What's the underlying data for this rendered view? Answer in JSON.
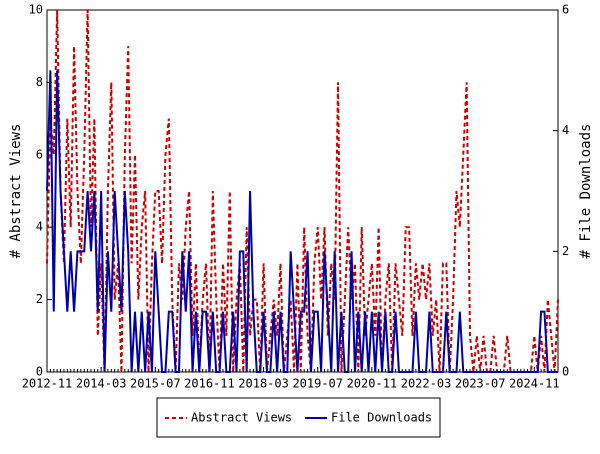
{
  "chart_data": {
    "type": "line",
    "y_label": "# Abstract Views",
    "y2_label": "# File Downloads",
    "categories": [
      "2012-11",
      null,
      null,
      null,
      null,
      null,
      null,
      null,
      null,
      null,
      null,
      null,
      null,
      null,
      null,
      null,
      "2014-03",
      null,
      null,
      null,
      null,
      null,
      null,
      null,
      null,
      null,
      null,
      null,
      null,
      null,
      null,
      null,
      "2015-07",
      null,
      null,
      null,
      null,
      null,
      null,
      null,
      null,
      null,
      null,
      null,
      null,
      null,
      null,
      null,
      "2016-11",
      null,
      null,
      null,
      null,
      null,
      null,
      null,
      null,
      null,
      null,
      null,
      null,
      null,
      null,
      null,
      "2018-03",
      null,
      null,
      null,
      null,
      null,
      null,
      null,
      null,
      null,
      null,
      null,
      null,
      null,
      null,
      null,
      "2019-07",
      null,
      null,
      null,
      null,
      null,
      null,
      null,
      null,
      null,
      null,
      null,
      null,
      null,
      null,
      null,
      "2020-11",
      null,
      null,
      null,
      null,
      null,
      null,
      null,
      null,
      null,
      null,
      null,
      null,
      null,
      null,
      null,
      "2022-03",
      null,
      null,
      null,
      null,
      null,
      null,
      null,
      null,
      null,
      null,
      null,
      null,
      null,
      null,
      null,
      "2023-07",
      null,
      null,
      null,
      null,
      null,
      null,
      null,
      null,
      null,
      null,
      null,
      null,
      null,
      null,
      null,
      "2024-11",
      null,
      null,
      null,
      null,
      null,
      null,
      null
    ],
    "series": [
      {
        "name": "Abstract Views",
        "color": "#cc0000",
        "dash": true,
        "axis": "y",
        "values": [
          3,
          7,
          6,
          10,
          5,
          3,
          7,
          4,
          9,
          5,
          3,
          6,
          10,
          4,
          7,
          1,
          3,
          0,
          5,
          8,
          2,
          3,
          0,
          6,
          9,
          3,
          6,
          2,
          4,
          5,
          0,
          3,
          5,
          5,
          3,
          6,
          7,
          2,
          0,
          3,
          2,
          4,
          5,
          1,
          3,
          0,
          2,
          3,
          0,
          5,
          2,
          0,
          3,
          1,
          5,
          0,
          2,
          3,
          0,
          4,
          1,
          2,
          2,
          0,
          3,
          0,
          1,
          2,
          1,
          3,
          0,
          1,
          2,
          0,
          3,
          0,
          4,
          1,
          0,
          3,
          4,
          2,
          4,
          1,
          3,
          2,
          8,
          0,
          2,
          4,
          2,
          3,
          0,
          4,
          1,
          2,
          3,
          1,
          4,
          0,
          2,
          3,
          0,
          3,
          2,
          1,
          4,
          4,
          1,
          3,
          2,
          3,
          2,
          3,
          1,
          2,
          0,
          3,
          3,
          0,
          2,
          5,
          4,
          6,
          8,
          1,
          0,
          1,
          0,
          1,
          0,
          0,
          1,
          0,
          0,
          0,
          1,
          0,
          0,
          0,
          0,
          0,
          0,
          0,
          1,
          0,
          1,
          0,
          2,
          1,
          0,
          2
        ]
      },
      {
        "name": "File Downloads",
        "color": "#0000aa",
        "dash": false,
        "axis": "y2",
        "values": [
          3,
          5,
          1,
          5,
          3,
          2,
          1,
          2,
          1,
          2,
          2,
          2,
          3,
          2,
          3,
          1,
          3,
          0,
          2,
          1,
          3,
          2,
          1,
          3,
          2,
          0,
          1,
          0,
          1,
          0,
          1,
          0,
          2,
          1,
          0,
          0,
          1,
          1,
          0,
          0,
          2,
          1,
          2,
          0,
          1,
          0,
          1,
          1,
          0,
          1,
          0,
          0,
          1,
          0,
          0,
          1,
          0,
          2,
          2,
          0,
          3,
          1,
          0,
          0,
          1,
          0,
          0,
          1,
          0,
          1,
          0,
          0,
          2,
          1,
          0,
          1,
          1,
          2,
          0,
          1,
          1,
          0,
          2,
          1,
          0,
          2,
          0,
          1,
          0,
          0,
          2,
          0,
          1,
          0,
          1,
          0,
          1,
          0,
          1,
          0,
          1,
          0,
          0,
          1,
          0,
          0,
          0,
          0,
          0,
          1,
          0,
          0,
          0,
          1,
          0,
          0,
          0,
          0,
          1,
          0,
          0,
          0,
          1,
          0,
          0,
          0,
          0,
          0,
          0,
          0,
          0,
          0,
          0,
          0,
          0,
          0,
          0,
          0,
          0,
          0,
          0,
          0,
          0,
          0,
          0,
          0,
          1,
          1,
          0,
          0,
          0,
          0
        ]
      }
    ],
    "ylim": [
      0,
      10
    ],
    "yticks": [
      0,
      2,
      4,
      6,
      8,
      10
    ],
    "y2lim": [
      0,
      6
    ],
    "y2ticks": [
      0,
      2,
      4,
      6
    ],
    "legend": "bottom"
  }
}
